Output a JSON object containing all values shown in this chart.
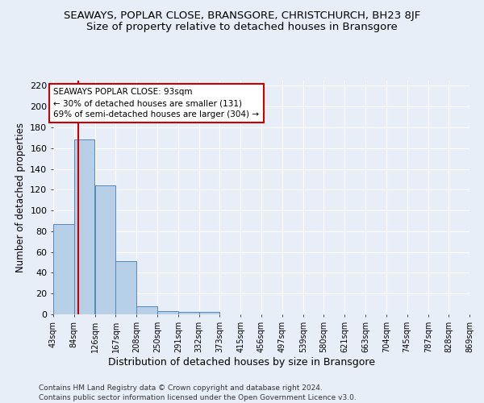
{
  "title": "SEAWAYS, POPLAR CLOSE, BRANSGORE, CHRISTCHURCH, BH23 8JF",
  "subtitle": "Size of property relative to detached houses in Bransgore",
  "xlabel": "Distribution of detached houses by size in Bransgore",
  "ylabel": "Number of detached properties",
  "bin_edges": [
    43,
    84,
    126,
    167,
    208,
    250,
    291,
    332,
    373,
    415,
    456,
    497,
    539,
    580,
    621,
    663,
    704,
    745,
    787,
    828,
    869
  ],
  "bar_heights": [
    87,
    168,
    124,
    51,
    8,
    3,
    2,
    2,
    0,
    0,
    0,
    0,
    0,
    0,
    0,
    0,
    0,
    0,
    0,
    0
  ],
  "bar_color": "#b8cfe8",
  "bar_edge_color": "#5588bb",
  "background_color": "#e8eef8",
  "plot_bg_color": "#e8eef8",
  "property_size": 93,
  "red_line_color": "#cc0000",
  "annotation_line1": "SEAWAYS POPLAR CLOSE: 93sqm",
  "annotation_line2": "← 30% of detached houses are smaller (131)",
  "annotation_line3": "69% of semi-detached houses are larger (304) →",
  "annotation_box_color": "#ffffff",
  "annotation_box_edge": "#cc0000",
  "ylim_max": 225,
  "yticks": [
    0,
    20,
    40,
    60,
    80,
    100,
    120,
    140,
    160,
    180,
    200,
    220
  ],
  "footer_line1": "Contains HM Land Registry data © Crown copyright and database right 2024.",
  "footer_line2": "Contains public sector information licensed under the Open Government Licence v3.0.",
  "title_fontsize": 9.5,
  "subtitle_fontsize": 9.5,
  "tick_label_fontsize": 7,
  "ytick_fontsize": 8,
  "ylabel_fontsize": 8.5,
  "xlabel_fontsize": 9,
  "annotation_fontsize": 7.5,
  "footer_fontsize": 6.5,
  "grid_color": "#ffffff",
  "grid_linewidth": 0.8
}
